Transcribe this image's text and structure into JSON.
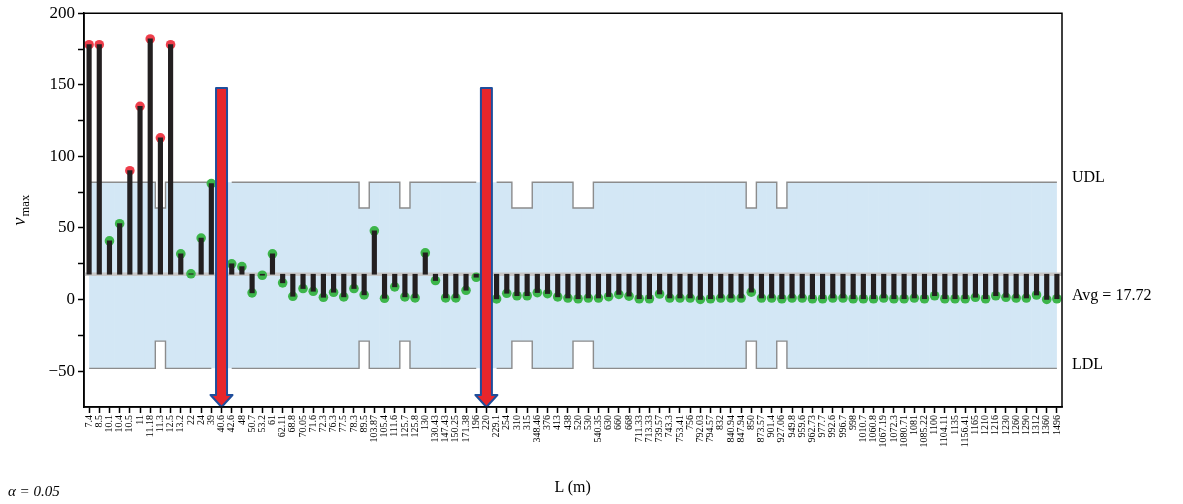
{
  "chart_data": {
    "type": "bar",
    "xlabel": "L (m)",
    "ylabel": "v$_{max}$",
    "categories": [
      "7.4",
      "8.5",
      "10.1",
      "10.4",
      "10.5",
      "11",
      "11.18",
      "11.3",
      "12.5",
      "13.2",
      "22",
      "24",
      "39",
      "40.6",
      "42.6",
      "48",
      "50.7",
      "53.2",
      "61",
      "62.11",
      "68.8",
      "70.05",
      "71.6",
      "72.3",
      "76.3",
      "77.5",
      "78.3",
      "89.5",
      "103.87",
      "105.4",
      "111.6",
      "125.7",
      "125.8",
      "130",
      "130.43",
      "147.43",
      "150.25",
      "171.38",
      "196",
      "220",
      "229.1",
      "254",
      "310",
      "315",
      "348.46",
      "376",
      "413",
      "438",
      "520",
      "530",
      "540.35",
      "630",
      "660",
      "668",
      "711.33",
      "713.33",
      "739.57",
      "743.3",
      "753.41",
      "756",
      "792.03",
      "794.57",
      "832",
      "840.94",
      "847.94",
      "850",
      "873.57",
      "901.4",
      "927.06",
      "949.8",
      "959.6",
      "962.73",
      "977.7",
      "992.6",
      "996.7",
      "998",
      "1010.7",
      "1060.8",
      "1067.19",
      "1072.3",
      "1080.71",
      "1081",
      "1085.22",
      "1100",
      "1104.11",
      "1135",
      "1156.41",
      "1165",
      "1210",
      "1216",
      "1230",
      "1260",
      "1290",
      "1312",
      "1360",
      "1496"
    ],
    "series": [
      {
        "type": "step",
        "name": "UDL",
        "color": "#8c8c8c",
        "values": [
          82,
          82,
          82,
          82,
          82,
          82,
          82,
          64,
          82,
          82,
          82,
          82,
          82,
          null,
          82,
          82,
          82,
          82,
          82,
          82,
          82,
          82,
          82,
          82,
          82,
          82,
          82,
          64,
          82,
          82,
          82,
          64,
          82,
          82,
          82,
          82,
          82,
          82,
          82,
          null,
          82,
          82,
          64,
          64,
          82,
          82,
          82,
          82,
          64,
          64,
          82,
          82,
          82,
          82,
          82,
          82,
          82,
          82,
          82,
          82,
          82,
          82,
          82,
          82,
          82,
          64,
          82,
          82,
          64,
          82,
          82,
          82,
          82,
          82,
          82,
          82,
          82,
          82,
          82,
          82,
          82,
          82,
          82,
          82,
          82,
          82,
          82,
          82,
          82,
          82,
          82,
          82,
          82,
          82,
          82,
          82
        ],
        "upper": [
          82,
          82,
          82,
          82,
          82,
          82,
          82,
          64,
          82,
          82,
          82,
          82,
          82,
          null,
          82,
          82,
          82,
          82,
          82,
          82,
          82,
          82,
          82,
          82,
          82,
          82,
          82,
          64,
          82,
          82,
          82,
          64,
          82,
          82,
          82,
          82,
          82,
          82,
          82,
          null,
          82,
          82,
          64,
          64,
          82,
          82,
          82,
          82,
          64,
          64,
          82,
          82,
          82,
          82,
          82,
          82,
          82,
          82,
          82,
          82,
          82,
          82,
          82,
          82,
          82,
          64,
          82,
          82,
          64,
          82,
          82,
          82,
          82,
          82,
          82,
          82,
          82,
          82,
          82,
          82,
          82,
          82,
          82,
          82,
          82,
          82,
          82,
          82,
          82,
          82,
          82,
          82,
          82,
          82,
          82,
          82
        ],
        "lower": [
          -48,
          -48,
          -48,
          -48,
          -48,
          -48,
          -48,
          -29,
          -48,
          -48,
          -48,
          -48,
          -48,
          null,
          -48,
          -48,
          -48,
          -48,
          -48,
          -48,
          -48,
          -48,
          -48,
          -48,
          -48,
          -48,
          -48,
          -29,
          -48,
          -48,
          -48,
          -29,
          -48,
          -48,
          -48,
          -48,
          -48,
          -48,
          -48,
          null,
          -48,
          -48,
          -29,
          -29,
          -48,
          -48,
          -48,
          -48,
          -29,
          -29,
          -48,
          -48,
          -48,
          -48,
          -48,
          -48,
          -48,
          -48,
          -48,
          -48,
          -48,
          -48,
          -48,
          -48,
          -48,
          -29,
          -48,
          -48,
          -29,
          -48,
          -48,
          -48,
          -48,
          -48,
          -48,
          -48,
          -48,
          -48,
          -48,
          -48,
          -48,
          -48,
          -48,
          -48,
          -48,
          -48,
          -48,
          -48,
          -48,
          -48,
          -48,
          -48,
          -48,
          -48,
          -48,
          -48
        ]
      },
      {
        "type": "step",
        "name": "LDL",
        "color": "#8c8c8c",
        "values": [
          -48,
          -48,
          -48,
          -48,
          -48,
          -48,
          -48,
          -29,
          -48,
          -48,
          -48,
          -48,
          -48,
          null,
          -48,
          -48,
          -48,
          -48,
          -48,
          -48,
          -48,
          -48,
          -48,
          -48,
          -48,
          -48,
          -48,
          -29,
          -48,
          -48,
          -48,
          -29,
          -48,
          -48,
          -48,
          -48,
          -48,
          -48,
          -48,
          null,
          -48,
          -48,
          -29,
          -29,
          -48,
          -48,
          -48,
          -48,
          -29,
          -29,
          -48,
          -48,
          -48,
          -48,
          -48,
          -48,
          -48,
          -48,
          -48,
          -48,
          -48,
          -48,
          -48,
          -48,
          -48,
          -29,
          -48,
          -48,
          -29,
          -48,
          -48,
          -48,
          -48,
          -48,
          -48,
          -48,
          -48,
          -48,
          -48,
          -48,
          -48,
          -48,
          -48,
          -48,
          -48,
          -48,
          -48,
          -48,
          -48,
          -48,
          -48,
          -48,
          -48,
          -48,
          -48,
          -48
        ]
      },
      {
        "color": "#231f20",
        "base": [
          17.72,
          17.72,
          17.72,
          17.72,
          17.72,
          17.72,
          17.72,
          17.72,
          17.72,
          17.72,
          17.72,
          17.72,
          17.72,
          null,
          17.72,
          17.72,
          17.72,
          17.72,
          17.72,
          17.72,
          17.72,
          17.72,
          17.72,
          17.72,
          17.72,
          17.72,
          17.72,
          17.72,
          17.72,
          17.72,
          17.72,
          17.72,
          17.72,
          17.72,
          17.72,
          17.72,
          17.72,
          17.72,
          17.72,
          null,
          17.72,
          17.72,
          17.72,
          17.72,
          17.72,
          17.72,
          17.72,
          17.72,
          17.72,
          17.72,
          17.72,
          17.72,
          17.72,
          17.72,
          17.72,
          17.72,
          17.72,
          17.72,
          17.72,
          17.72,
          17.72,
          17.72,
          17.72,
          17.72,
          17.72,
          17.72,
          17.72,
          17.72,
          17.72,
          17.72,
          17.72,
          17.72,
          17.72,
          17.72,
          17.72,
          17.72,
          17.72,
          17.72,
          17.72,
          17.72,
          17.72,
          17.72,
          17.72,
          17.72,
          17.72,
          17.72,
          17.72,
          17.72,
          17.72,
          17.72,
          17.72,
          17.72,
          17.72,
          17.72,
          17.72,
          17.72
        ],
        "values": [
          160.3,
          160.3,
          23.3,
          35.3,
          72.3,
          117.3,
          164.3,
          95.3,
          160.3,
          14.3,
          0.3,
          25.3,
          63.3,
          null,
          7.3,
          5.3,
          -13,
          -0.7,
          14.3,
          -6,
          -15.4,
          -10,
          -11.9,
          -16.1,
          -12.6,
          -15.8,
          -10,
          -14.4,
          30.3,
          -16.8,
          -8.8,
          -15.8,
          -16.5,
          15,
          -4.4,
          -16.5,
          -16.5,
          -11.2,
          -2.1,
          null,
          -17.2,
          -13.3,
          -15,
          -15,
          -12.8,
          -13.5,
          -15.8,
          -16.6,
          -17.1,
          -16.6,
          -16.6,
          -15.6,
          -14.1,
          -15.3,
          -17.1,
          -17.1,
          -13.8,
          -16.6,
          -16.6,
          -16.6,
          -17.6,
          -17.1,
          -16.6,
          -16.6,
          -16.6,
          -12.5,
          -16.6,
          -16.6,
          -17.1,
          -16.6,
          -16.6,
          -17.1,
          -17.1,
          -16.6,
          -16.6,
          -17.1,
          -17.1,
          -17.1,
          -16.6,
          -17.1,
          -17.1,
          -16.6,
          -17.1,
          -15,
          -17.1,
          -17.1,
          -17.1,
          -16.1,
          -17.1,
          -15,
          -16.1,
          -16.6,
          -16.6,
          -14.5,
          -17.6,
          -17.1
        ]
      },
      {
        "type": "scatter",
        "marker": "circle",
        "values": [
          178,
          178,
          41,
          53,
          90,
          135,
          182,
          113,
          178,
          32,
          18,
          43,
          81,
          null,
          25,
          23,
          4.7,
          17,
          32,
          11.7,
          2.3,
          7.7,
          5.8,
          1.6,
          5.1,
          1.9,
          7.7,
          3.3,
          48,
          0.9,
          8.9,
          1.9,
          1.2,
          32.7,
          13.3,
          1.2,
          1.2,
          6.5,
          15.6,
          null,
          0.5,
          4.4,
          2.7,
          2.7,
          4.9,
          4.2,
          1.9,
          1.1,
          0.6,
          1.1,
          1.1,
          2.1,
          3.6,
          2.4,
          0.6,
          0.6,
          3.9,
          1.1,
          1.1,
          1.1,
          0.1,
          0.6,
          1.1,
          1.1,
          1.1,
          5.2,
          1.1,
          1.1,
          0.6,
          1.1,
          1.1,
          0.6,
          0.6,
          1.1,
          1.1,
          0.6,
          0.6,
          0.6,
          1.1,
          0.6,
          0.6,
          1.1,
          0.6,
          2.7,
          0.6,
          0.6,
          0.6,
          1.6,
          0.6,
          2.7,
          1.6,
          1.1,
          1.1,
          3.2,
          0.1,
          0.6
        ],
        "colors": [
          "#ee3e4b",
          "#ee3e4b",
          "#3cb54a",
          "#3cb54a",
          "#ee3e4b",
          "#ee3e4b",
          "#ee3e4b",
          "#ee3e4b",
          "#ee3e4b",
          "#3cb54a",
          "#3cb54a",
          "#3cb54a",
          "#3cb54a",
          "#3cb54a",
          "#3cb54a",
          "#3cb54a",
          "#3cb54a",
          "#3cb54a",
          "#3cb54a",
          "#3cb54a",
          "#3cb54a",
          "#3cb54a",
          "#3cb54a",
          "#3cb54a",
          "#3cb54a",
          "#3cb54a",
          "#3cb54a",
          "#3cb54a",
          "#3cb54a",
          "#3cb54a",
          "#3cb54a",
          "#3cb54a",
          "#3cb54a",
          "#3cb54a",
          "#3cb54a",
          "#3cb54a",
          "#3cb54a",
          "#3cb54a",
          "#3cb54a",
          "#3cb54a",
          "#3cb54a",
          "#3cb54a",
          "#3cb54a",
          "#3cb54a",
          "#3cb54a",
          "#3cb54a",
          "#3cb54a",
          "#3cb54a",
          "#3cb54a",
          "#3cb54a",
          "#3cb54a",
          "#3cb54a",
          "#3cb54a",
          "#3cb54a",
          "#3cb54a",
          "#3cb54a",
          "#3cb54a",
          "#3cb54a",
          "#3cb54a",
          "#3cb54a",
          "#3cb54a",
          "#3cb54a",
          "#3cb54a",
          "#3cb54a",
          "#3cb54a",
          "#3cb54a",
          "#3cb54a",
          "#3cb54a",
          "#3cb54a",
          "#3cb54a",
          "#3cb54a",
          "#3cb54a",
          "#3cb54a",
          "#3cb54a",
          "#3cb54a",
          "#3cb54a",
          "#3cb54a",
          "#3cb54a",
          "#3cb54a",
          "#3cb54a",
          "#3cb54a",
          "#3cb54a",
          "#3cb54a",
          "#3cb54a",
          "#3cb54a",
          "#3cb54a",
          "#3cb54a",
          "#3cb54a",
          "#3cb54a",
          "#3cb54a",
          "#3cb54a",
          "#3cb54a",
          "#3cb54a",
          "#3cb54a",
          "#3cb54a",
          "#3cb54a"
        ]
      }
    ],
    "ylim": [
      -75,
      200
    ],
    "yticks": [
      {
        "value": -50,
        "label": "−50"
      },
      {
        "value": -25,
        "label": null
      },
      0,
      {
        "value": 25,
        "label": null
      },
      50,
      {
        "value": 75,
        "label": null
      },
      100,
      {
        "value": 125,
        "label": null
      },
      150,
      {
        "value": 175,
        "label": null
      },
      200
    ],
    "ref_lines": [
      {
        "axis": "y",
        "value": 17.72,
        "label": "Avg = 17.72",
        "color": "#c8c8c8"
      },
      {
        "axis": "x",
        "value": "40.6",
        "color": "#e8262b"
      },
      {
        "axis": "x",
        "value": "220",
        "color": "#e8262b"
      }
    ],
    "annotations": [
      "α = 0.05"
    ],
    "grid": false,
    "legend": false
  }
}
